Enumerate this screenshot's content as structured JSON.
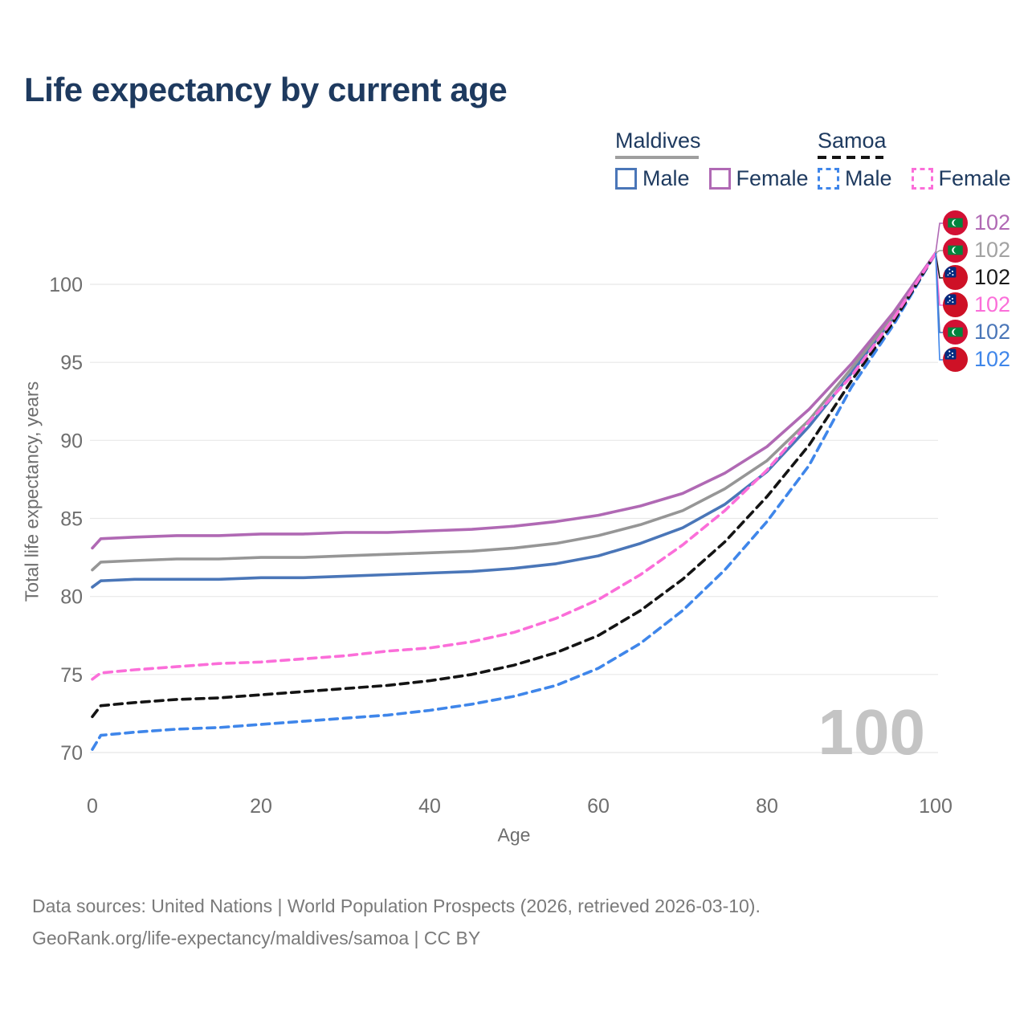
{
  "header": {
    "title": "Life expectancy by current age"
  },
  "legend": {
    "groups": [
      {
        "country": "Maldives",
        "line_style": "solid",
        "items": [
          {
            "label": "Male",
            "color": "#4a76b8"
          },
          {
            "label": "Female",
            "color": "#b069b4"
          }
        ]
      },
      {
        "country": "Samoa",
        "line_style": "dashed",
        "items": [
          {
            "label": "Male",
            "color": "#3f86ea"
          },
          {
            "label": "Female",
            "color": "#fb6ed9"
          }
        ]
      }
    ]
  },
  "axes": {
    "x_label": "Age",
    "y_label": "Total life expectancy, years",
    "x_ticks": [
      0,
      20,
      40,
      60,
      80,
      100
    ],
    "y_ticks": [
      70,
      75,
      80,
      85,
      90,
      95,
      100
    ]
  },
  "watermark": {
    "value": "100"
  },
  "footer": {
    "line1": "Data sources: United Nations | World Population Prospects (2026, retrieved 2026-03-10).",
    "line2": "GeoRank.org/life-expectancy/maldives/samoa | CC BY"
  },
  "chart_data": {
    "type": "line",
    "title": "Life expectancy by current age",
    "xlabel": "Age",
    "ylabel": "Total life expectancy, years",
    "xlim": [
      0,
      100
    ],
    "ylim": [
      69,
      103
    ],
    "grid": "horizontal",
    "legend_position": "top-right",
    "x": [
      0,
      1,
      5,
      10,
      15,
      20,
      25,
      30,
      35,
      40,
      45,
      50,
      55,
      60,
      65,
      70,
      75,
      80,
      85,
      90,
      95,
      100
    ],
    "series": [
      {
        "name": "Maldives Male",
        "country": "Maldives",
        "color": "#4a76b8",
        "dash": "solid",
        "values": [
          80.6,
          81.0,
          81.1,
          81.1,
          81.1,
          81.2,
          81.2,
          81.3,
          81.4,
          81.5,
          81.6,
          81.8,
          82.1,
          82.6,
          83.4,
          84.4,
          85.9,
          88.0,
          90.9,
          94.3,
          97.9,
          102
        ]
      },
      {
        "name": "Maldives Total",
        "country": "Maldives",
        "color": "#969696",
        "dash": "solid",
        "values": [
          81.7,
          82.2,
          82.3,
          82.4,
          82.4,
          82.5,
          82.5,
          82.6,
          82.7,
          82.8,
          82.9,
          83.1,
          83.4,
          83.9,
          84.6,
          85.5,
          86.9,
          88.7,
          91.3,
          94.6,
          98.0,
          102
        ]
      },
      {
        "name": "Maldives Female",
        "country": "Maldives",
        "color": "#b069b4",
        "dash": "solid",
        "values": [
          83.1,
          83.7,
          83.8,
          83.9,
          83.9,
          84.0,
          84.0,
          84.1,
          84.1,
          84.2,
          84.3,
          84.5,
          84.8,
          85.2,
          85.8,
          86.6,
          87.9,
          89.6,
          92.0,
          94.9,
          98.2,
          102
        ]
      },
      {
        "name": "Samoa Male",
        "country": "Samoa",
        "color": "#3f86ea",
        "dash": "dashed",
        "values": [
          70.2,
          71.1,
          71.3,
          71.5,
          71.6,
          71.8,
          72.0,
          72.2,
          72.4,
          72.7,
          73.1,
          73.6,
          74.3,
          75.4,
          77.0,
          79.1,
          81.7,
          84.8,
          88.4,
          93.4,
          97.4,
          102
        ]
      },
      {
        "name": "Samoa Total",
        "country": "Samoa",
        "color": "#141414",
        "dash": "dashed",
        "values": [
          72.3,
          73.0,
          73.2,
          73.4,
          73.5,
          73.7,
          73.9,
          74.1,
          74.3,
          74.6,
          75.0,
          75.6,
          76.4,
          77.5,
          79.1,
          81.1,
          83.5,
          86.4,
          89.7,
          93.8,
          97.6,
          102
        ]
      },
      {
        "name": "Samoa Female",
        "country": "Samoa",
        "color": "#fb6ed9",
        "dash": "dashed",
        "values": [
          74.7,
          75.1,
          75.3,
          75.5,
          75.7,
          75.8,
          76.0,
          76.2,
          76.5,
          76.7,
          77.1,
          77.7,
          78.6,
          79.8,
          81.4,
          83.3,
          85.5,
          88.1,
          91.2,
          94.1,
          97.8,
          102
        ]
      }
    ],
    "end_labels": [
      {
        "series": "Maldives Female",
        "country": "Maldives",
        "value": "102",
        "color": "#b069b4"
      },
      {
        "series": "Maldives Total",
        "country": "Maldives",
        "value": "102",
        "color": "#a2a2a2"
      },
      {
        "series": "Samoa Total",
        "country": "Samoa",
        "value": "102",
        "color": "#1a1a1a"
      },
      {
        "series": "Samoa Female",
        "country": "Samoa",
        "value": "102",
        "color": "#fb6ed9"
      },
      {
        "series": "Maldives Male",
        "country": "Maldives",
        "value": "102",
        "color": "#4a76b8"
      },
      {
        "series": "Samoa Male",
        "country": "Samoa",
        "value": "102",
        "color": "#3f86ea"
      }
    ]
  }
}
